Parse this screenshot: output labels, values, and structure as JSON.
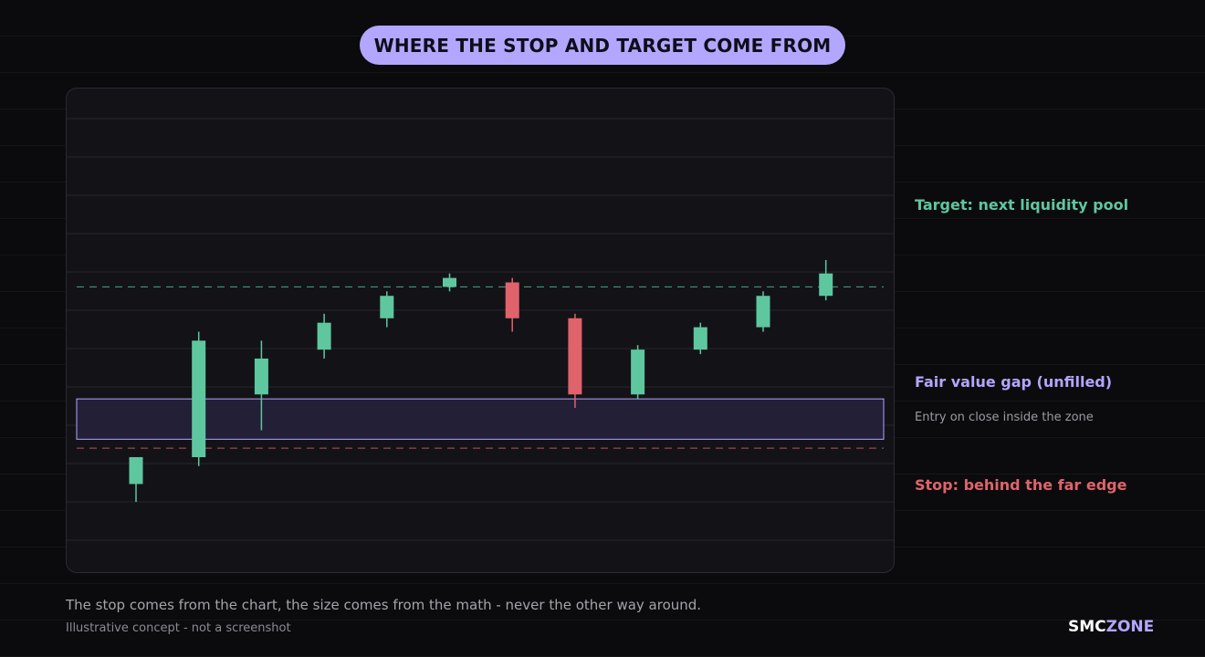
{
  "header": {
    "title": "WHERE THE STOP AND TARGET COME FROM"
  },
  "annotations": {
    "target": "Target: next liquidity pool",
    "fvg": "Fair value gap (unfilled)",
    "entry": "Entry on close inside the zone",
    "stop": "Stop: behind the far edge"
  },
  "footer": {
    "caption": "The stop comes from the chart, the size comes from the math - never the other way around.",
    "note": "Illustrative concept - not a screenshot"
  },
  "brand": {
    "part1": "SMC",
    "part2": "ZONE"
  },
  "colors": {
    "bull": "#5ec79f",
    "bear": "#e0636b",
    "zone_fill": "#231f37",
    "zone_border": "#b3a6ff",
    "grid": "#26262d",
    "accent": "#b3a6ff"
  },
  "chart_data": {
    "type": "candlestick",
    "ylim": [
      0,
      100
    ],
    "grid": true,
    "candles": [
      {
        "open": 16,
        "high": 22,
        "low": 12,
        "close": 22
      },
      {
        "open": 22,
        "high": 50,
        "low": 20,
        "close": 48
      },
      {
        "open": 36,
        "high": 48,
        "low": 28,
        "close": 44
      },
      {
        "open": 46,
        "high": 54,
        "low": 44,
        "close": 52
      },
      {
        "open": 53,
        "high": 59,
        "low": 51,
        "close": 58
      },
      {
        "open": 60,
        "high": 63,
        "low": 59,
        "close": 62
      },
      {
        "open": 61,
        "high": 62,
        "low": 50,
        "close": 53
      },
      {
        "open": 53,
        "high": 54,
        "low": 33,
        "close": 36
      },
      {
        "open": 36,
        "high": 47,
        "low": 35,
        "close": 46
      },
      {
        "open": 46,
        "high": 52,
        "low": 45,
        "close": 51
      },
      {
        "open": 51,
        "high": 59,
        "low": 50,
        "close": 58
      },
      {
        "open": 58,
        "high": 66,
        "low": 57,
        "close": 63
      }
    ],
    "fvg_zone": {
      "bottom": 26,
      "top": 35
    },
    "target_level": 60,
    "stop_level": 24
  }
}
